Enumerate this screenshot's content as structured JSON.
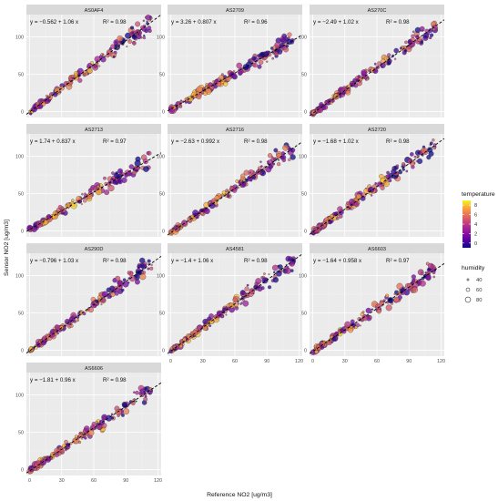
{
  "chart_data": {
    "type": "scatter",
    "xlabel": "Reference NO2 [ug/m3]",
    "ylabel": "Sensor NO2 [ug/m3]",
    "x_ticks": [
      0,
      30,
      60,
      90,
      120
    ],
    "y_ticks": [
      0,
      50,
      100
    ],
    "xlim": [
      -3,
      123
    ],
    "ylim": [
      -8,
      130
    ],
    "grid": true,
    "fit_line": "dashed",
    "panels": [
      {
        "title": "AS0AF4",
        "eq": "y = −0.562 + 1.06 x",
        "r2": "R² = 0.98",
        "intercept": -0.562,
        "slope": 1.06
      },
      {
        "title": "AS2709",
        "eq": "y = 3.26 + 0.807 x",
        "r2": "R² = 0.96",
        "intercept": 3.26,
        "slope": 0.807
      },
      {
        "title": "AS270C",
        "eq": "y = −2.49 + 1.02 x",
        "r2": "R² = 0.98",
        "intercept": -2.49,
        "slope": 1.02
      },
      {
        "title": "AS2713",
        "eq": "y = 1.74 + 0.837 x",
        "r2": "R² = 0.97",
        "intercept": 1.74,
        "slope": 0.837
      },
      {
        "title": "AS2716",
        "eq": "y = −2.63 + 0.992 x",
        "r2": "R² = 0.98",
        "intercept": -2.63,
        "slope": 0.992
      },
      {
        "title": "AS2720",
        "eq": "y = −1.68 + 1.02 x",
        "r2": "R² = 0.98",
        "intercept": -1.68,
        "slope": 1.02
      },
      {
        "title": "AS290D",
        "eq": "y = −0.796 + 1.03 x",
        "r2": "R² = 0.98",
        "intercept": -0.796,
        "slope": 1.03
      },
      {
        "title": "AS4581",
        "eq": "y = −1.4 + 1.06 x",
        "r2": "R² = 0.98",
        "intercept": -1.4,
        "slope": 1.06
      },
      {
        "title": "AS6603",
        "eq": "y = −1.64 + 0.958 x",
        "r2": "R² = 0.97",
        "intercept": -1.64,
        "slope": 0.958
      },
      {
        "title": "AS6606",
        "eq": "y = −1.81 + 0.96 x",
        "r2": "R² = 0.98",
        "intercept": -1.81,
        "slope": 0.96
      }
    ],
    "legend": {
      "placement": "right",
      "color_title": "temperature",
      "color_ticks": [
        8,
        6,
        4,
        2,
        0
      ],
      "color_range": [
        -1,
        9
      ],
      "colors": [
        "#0d0887",
        "#6a00a8",
        "#b12a90",
        "#e16462",
        "#fca636",
        "#f0f921"
      ],
      "size_title": "humidity",
      "size_values": [
        40,
        60,
        80
      ]
    }
  }
}
